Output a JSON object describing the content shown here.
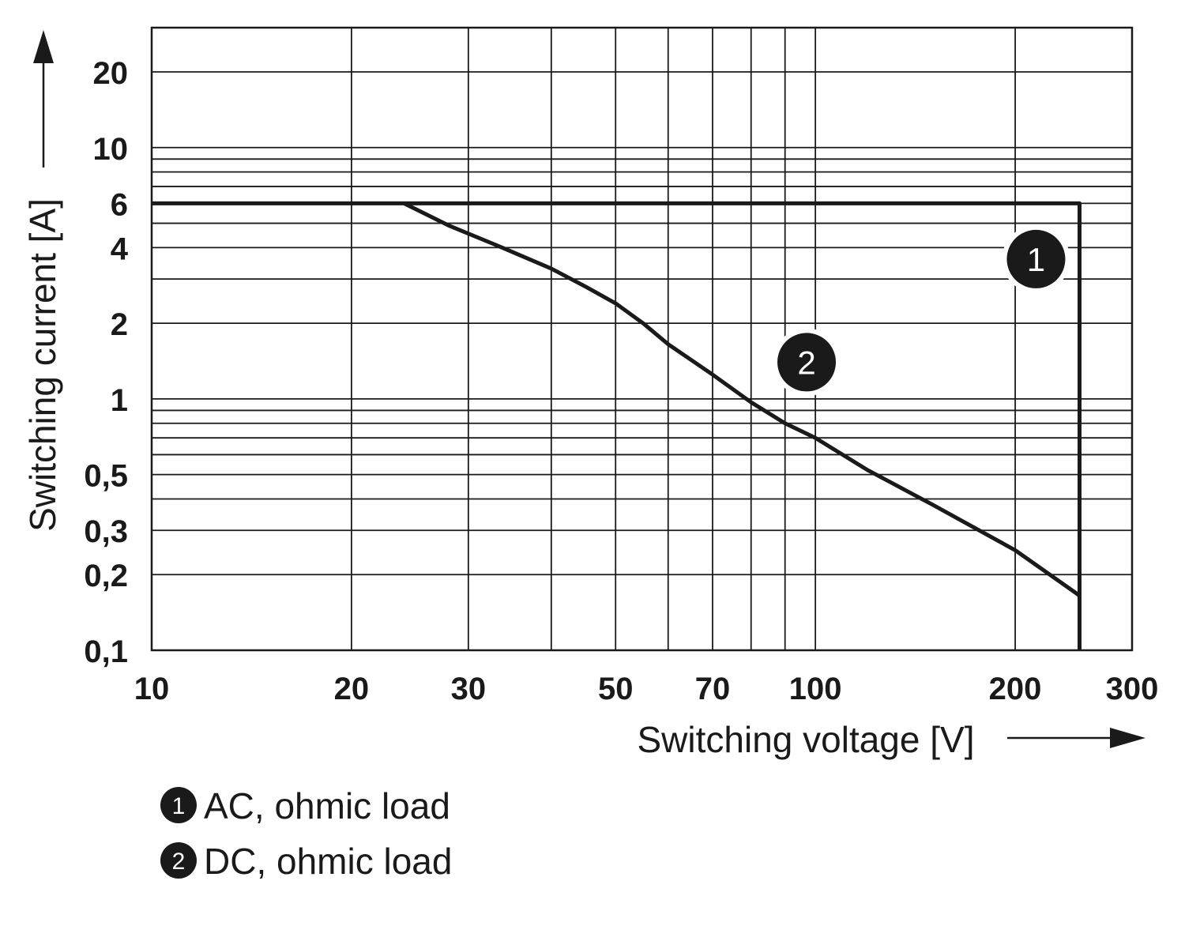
{
  "chart_data": {
    "type": "line",
    "x_scale": "log",
    "y_scale": "log",
    "xlabel": "Switching voltage [V]",
    "ylabel": "Switching current [A]",
    "xlim": [
      10,
      300
    ],
    "ylim": [
      0.1,
      30
    ],
    "grid": true,
    "x_gridlines": [
      10,
      20,
      30,
      40,
      50,
      60,
      70,
      80,
      90,
      100,
      200,
      300
    ],
    "y_gridlines": [
      0.1,
      0.2,
      0.3,
      0.4,
      0.5,
      0.6,
      0.7,
      0.8,
      0.9,
      1,
      2,
      3,
      4,
      5,
      6,
      7,
      8,
      9,
      10,
      20,
      30
    ],
    "x_ticks": [
      {
        "value": 10,
        "label": "10"
      },
      {
        "value": 20,
        "label": "20"
      },
      {
        "value": 30,
        "label": "30"
      },
      {
        "value": 50,
        "label": "50"
      },
      {
        "value": 70,
        "label": "70"
      },
      {
        "value": 100,
        "label": "100"
      },
      {
        "value": 200,
        "label": "200"
      },
      {
        "value": 300,
        "label": "300"
      }
    ],
    "y_ticks": [
      {
        "value": 20,
        "label": "20"
      },
      {
        "value": 10,
        "label": "10"
      },
      {
        "value": 6,
        "label": "6"
      },
      {
        "value": 4,
        "label": "4"
      },
      {
        "value": 2,
        "label": "2"
      },
      {
        "value": 1,
        "label": "1"
      },
      {
        "value": 0.5,
        "label": "0,5"
      },
      {
        "value": 0.3,
        "label": "0,3"
      },
      {
        "value": 0.2,
        "label": "0,2"
      },
      {
        "value": 0.1,
        "label": "0,1"
      }
    ],
    "series": [
      {
        "marker": "1",
        "name": "AC, ohmic load",
        "marker_at": {
          "x": 215,
          "y": 3.6
        },
        "points": [
          [
            10,
            6
          ],
          [
            250,
            6
          ],
          [
            250,
            0.1
          ]
        ]
      },
      {
        "marker": "2",
        "name": "DC, ohmic load",
        "marker_at": {
          "x": 97,
          "y": 1.4
        },
        "points": [
          [
            24,
            6
          ],
          [
            28,
            4.9
          ],
          [
            33,
            4.1
          ],
          [
            40,
            3.3
          ],
          [
            45,
            2.8
          ],
          [
            50,
            2.4
          ],
          [
            55,
            2.0
          ],
          [
            60,
            1.65
          ],
          [
            70,
            1.25
          ],
          [
            80,
            0.97
          ],
          [
            90,
            0.8
          ],
          [
            100,
            0.7
          ],
          [
            120,
            0.52
          ],
          [
            150,
            0.38
          ],
          [
            200,
            0.25
          ],
          [
            250,
            0.165
          ]
        ]
      }
    ]
  },
  "legend": [
    {
      "num": "1",
      "label": "AC, ohmic load"
    },
    {
      "num": "2",
      "label": "DC, ohmic load"
    }
  ]
}
